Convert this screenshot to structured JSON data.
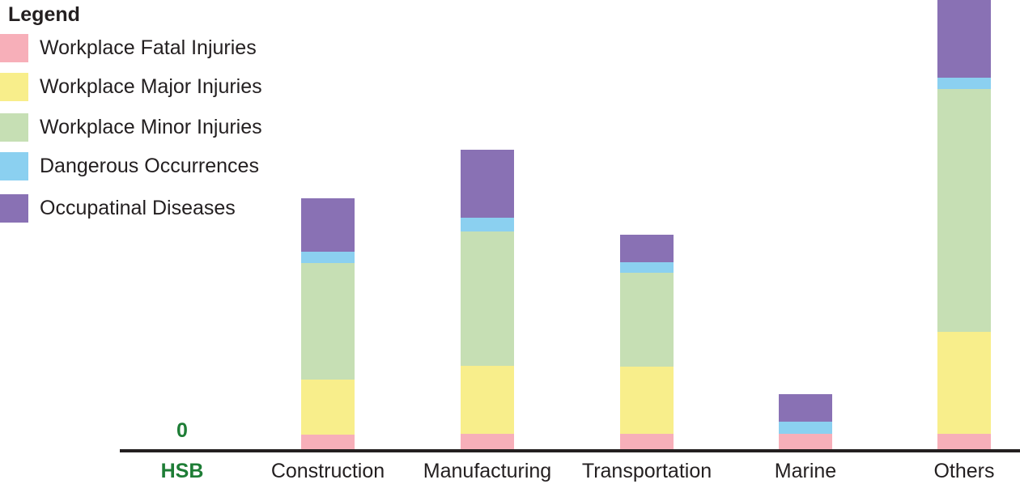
{
  "legend": {
    "title": "Legend",
    "items": [
      {
        "label": "Workplace Fatal Injuries",
        "color": "#f7afb9",
        "swatch": "pink-swatch"
      },
      {
        "label": "Workplace Major Injuries",
        "color": "#f8ee8b",
        "swatch": "yellow-swatch"
      },
      {
        "label": "Workplace Minor Injuries",
        "color": "#c6dfb4",
        "swatch": "green-swatch"
      },
      {
        "label": "Dangerous Occurrences",
        "color": "#8bd0f0",
        "swatch": "blue-swatch"
      },
      {
        "label": "Occupatinal Diseases",
        "color": "#8971b4",
        "swatch": "purple-swatch"
      }
    ]
  },
  "axis": {
    "zero_label": "0",
    "categories": [
      "HSB",
      "Construction",
      "Manufacturing",
      "Transportation",
      "Marine",
      "Others"
    ],
    "highlight_category": "HSB",
    "highlight_color": "#1e7d36",
    "label_color": "#231f20",
    "line_color": "#231f20"
  },
  "chart_data": {
    "type": "bar",
    "stacked": true,
    "title": "",
    "xlabel": "",
    "ylabel": "",
    "grid": false,
    "legend_position": "top-left",
    "categories": [
      "HSB",
      "Construction",
      "Manufacturing",
      "Transportation",
      "Marine",
      "Others"
    ],
    "series": [
      {
        "name": "Workplace Fatal Injuries",
        "color": "#f7afb9",
        "values": [
          0,
          18,
          19,
          19,
          19,
          19
        ]
      },
      {
        "name": "Workplace Major Injuries",
        "color": "#f8ee8b",
        "values": [
          0,
          68,
          84,
          83,
          0,
          126
        ]
      },
      {
        "name": "Workplace Minor Injuries",
        "color": "#c6dfb4",
        "values": [
          0,
          144,
          166,
          116,
          0,
          300
        ]
      },
      {
        "name": "Dangerous Occurrences",
        "color": "#8bd0f0",
        "values": [
          0,
          14,
          17,
          13,
          15,
          14
        ]
      },
      {
        "name": "Occupatinal Diseases",
        "color": "#8971b4",
        "values": [
          0,
          66,
          84,
          34,
          34,
          96
        ]
      }
    ],
    "totals": [
      0,
      310,
      370,
      265,
      68,
      555
    ],
    "value_units": "relative (pixel heights; no numeric y-axis shown)",
    "annotations": [
      {
        "category": "HSB",
        "text": "0"
      }
    ],
    "notes": "Stacked bottom-to-top: Fatal, Major, Minor, Dangerous Occurrences, Occupatinal Diseases. HSB total is 0. 'Others' top (purple) segment is clipped at the top edge of the image."
  }
}
